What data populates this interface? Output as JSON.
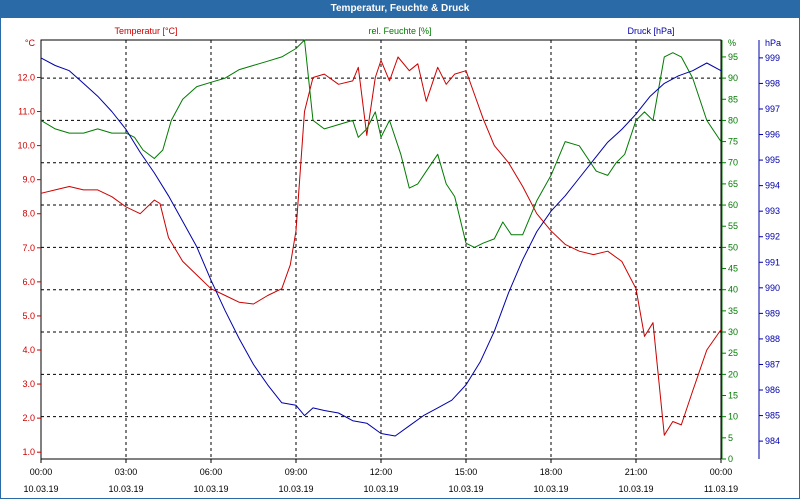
{
  "window": {
    "title": "Temperatur, Feuchte & Druck"
  },
  "colors": {
    "temperature": "#cc0000",
    "humidity": "#007a00",
    "pressure": "#0000aa",
    "title_bar": "#2a6aa6",
    "grid": "#000000"
  },
  "chart_data": {
    "type": "line",
    "title": "Temperatur, Feuchte & Druck",
    "grid": true,
    "x_ticks": [
      {
        "time": "00:00",
        "date": "10.03.19"
      },
      {
        "time": "03:00",
        "date": "10.03.19"
      },
      {
        "time": "06:00",
        "date": "10.03.19"
      },
      {
        "time": "09:00",
        "date": "10.03.19"
      },
      {
        "time": "12:00",
        "date": "10.03.19"
      },
      {
        "time": "15:00",
        "date": "10.03.19"
      },
      {
        "time": "18:00",
        "date": "10.03.19"
      },
      {
        "time": "21:00",
        "date": "10.03.19"
      },
      {
        "time": "00:00",
        "date": "11.03.19"
      }
    ],
    "axes": {
      "left": {
        "label": "Temperatur [°C]",
        "unit": "°C",
        "range": [
          0.8,
          13.1
        ],
        "ticks": [
          "1.0",
          "2.0",
          "3.0",
          "4.0",
          "5.0",
          "6.0",
          "7.0",
          "8.0",
          "9.0",
          "10.0",
          "11.0",
          "12.0"
        ]
      },
      "right_inner": {
        "label": "rel. Feuchte [%]",
        "unit": "%",
        "range": [
          0,
          99
        ],
        "ticks": [
          "0",
          "5",
          "10",
          "15",
          "20",
          "25",
          "30",
          "35",
          "40",
          "45",
          "50",
          "55",
          "60",
          "65",
          "70",
          "75",
          "80",
          "85",
          "90",
          "95"
        ]
      },
      "right_outer": {
        "label": "Druck [hPa]",
        "unit": "hPa",
        "range": [
          983.3,
          999.7
        ],
        "ticks": [
          "984",
          "985",
          "986",
          "987",
          "988",
          "989",
          "990",
          "991",
          "992",
          "993",
          "994",
          "995",
          "996",
          "997",
          "998",
          "999"
        ]
      }
    },
    "series": [
      {
        "name": "Temperatur [°C]",
        "axis": "left",
        "color": "#cc0000",
        "x": [
          0,
          0.5,
          1,
          1.5,
          2,
          2.5,
          3,
          3.5,
          4,
          4.2,
          4.5,
          5,
          5.5,
          6,
          6.5,
          7,
          7.5,
          8,
          8.5,
          8.8,
          9,
          9.3,
          9.6,
          10,
          10.5,
          11,
          11.2,
          11.5,
          11.8,
          12,
          12.3,
          12.6,
          13,
          13.3,
          13.6,
          14,
          14.3,
          14.6,
          15,
          15.3,
          15.6,
          16,
          16.5,
          17,
          17.5,
          18,
          18.5,
          19,
          19.5,
          20,
          20.5,
          21,
          21.3,
          21.6,
          22,
          22.3,
          22.6,
          23,
          23.5,
          24
        ],
        "values": [
          8.6,
          8.7,
          8.8,
          8.7,
          8.7,
          8.5,
          8.2,
          8.0,
          8.4,
          8.3,
          7.3,
          6.6,
          6.2,
          5.8,
          5.6,
          5.4,
          5.35,
          5.6,
          5.8,
          6.5,
          7.5,
          11.0,
          12.0,
          12.1,
          11.8,
          11.9,
          12.3,
          10.3,
          12.0,
          12.5,
          11.9,
          12.6,
          12.2,
          12.4,
          11.3,
          12.3,
          11.8,
          12.1,
          12.2,
          11.5,
          10.8,
          10.0,
          9.5,
          8.8,
          8.0,
          7.5,
          7.1,
          6.9,
          6.8,
          6.9,
          6.6,
          5.8,
          4.4,
          4.8,
          1.5,
          1.9,
          1.8,
          2.8,
          4.0,
          4.6
        ]
      },
      {
        "name": "rel. Feuchte [%]",
        "axis": "right_inner",
        "color": "#007a00",
        "x": [
          0,
          0.5,
          1,
          1.5,
          2,
          2.5,
          3,
          3.3,
          3.6,
          4,
          4.3,
          4.6,
          5,
          5.5,
          6,
          6.5,
          7,
          7.5,
          8,
          8.5,
          9,
          9.3,
          9.6,
          10,
          10.5,
          11,
          11.2,
          11.5,
          11.8,
          12,
          12.3,
          12.7,
          13,
          13.3,
          13.6,
          14,
          14.3,
          14.6,
          15,
          15.3,
          15.6,
          16,
          16.3,
          16.6,
          17,
          17.5,
          18,
          18.5,
          19,
          19.3,
          19.6,
          20,
          20.3,
          20.6,
          21,
          21.3,
          21.6,
          22,
          22.3,
          22.6,
          23,
          23.5,
          24
        ],
        "values": [
          80,
          78,
          77,
          77,
          78,
          77,
          77,
          76,
          73,
          71,
          73,
          80,
          85,
          88,
          89,
          90,
          92,
          93,
          94,
          95,
          97,
          99,
          80,
          78,
          79,
          80,
          76,
          78,
          82,
          76,
          80,
          72,
          64,
          65,
          68,
          72,
          65,
          62,
          51,
          50,
          51,
          52,
          56,
          53,
          53,
          61,
          67,
          75,
          74,
          71,
          68,
          67,
          70,
          72,
          80,
          82,
          80,
          95,
          96,
          95,
          90,
          80,
          75
        ]
      },
      {
        "name": "Druck [hPa]",
        "axis": "right_outer",
        "color": "#0000aa",
        "x": [
          0,
          0.5,
          1,
          1.5,
          2,
          2.5,
          3,
          3.5,
          4,
          4.5,
          5,
          5.5,
          6,
          6.5,
          7,
          7.5,
          8,
          8.5,
          9,
          9.3,
          9.6,
          10,
          10.5,
          11,
          11.5,
          12,
          12.5,
          13,
          13.5,
          14,
          14.5,
          15,
          15.5,
          16,
          16.5,
          17,
          17.5,
          18,
          18.5,
          19,
          19.5,
          20,
          20.5,
          21,
          21.5,
          22,
          22.5,
          23,
          23.5,
          24
        ],
        "values": [
          999.0,
          998.7,
          998.5,
          998.0,
          997.5,
          996.9,
          996.2,
          995.3,
          994.5,
          993.6,
          992.6,
          991.6,
          990.3,
          989.1,
          988.0,
          987.0,
          986.2,
          985.5,
          985.4,
          985.0,
          985.3,
          985.2,
          985.1,
          984.8,
          984.7,
          984.3,
          984.2,
          984.6,
          985.0,
          985.3,
          985.6,
          986.2,
          987.1,
          988.3,
          989.8,
          991.1,
          992.2,
          993.0,
          993.6,
          994.3,
          995.0,
          995.7,
          996.2,
          996.8,
          997.5,
          998.0,
          998.3,
          998.5,
          998.8,
          998.5
        ]
      }
    ]
  }
}
